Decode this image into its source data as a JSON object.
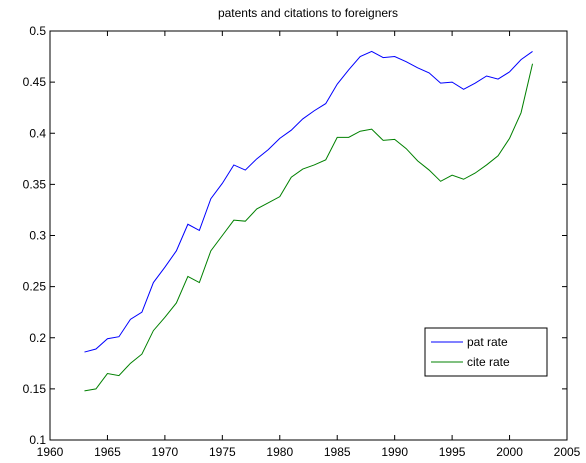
{
  "chart_data": {
    "type": "line",
    "title": "patents and citations to foreigners",
    "x": [
      1963,
      1964,
      1965,
      1966,
      1967,
      1968,
      1969,
      1970,
      1971,
      1972,
      1973,
      1974,
      1975,
      1976,
      1977,
      1978,
      1979,
      1980,
      1981,
      1982,
      1983,
      1984,
      1985,
      1986,
      1987,
      1988,
      1989,
      1990,
      1991,
      1992,
      1993,
      1994,
      1995,
      1996,
      1997,
      1998,
      1999,
      2000,
      2001,
      2002
    ],
    "series": [
      {
        "name": "pat rate",
        "color": "#0000ff",
        "values": [
          0.186,
          0.189,
          0.199,
          0.201,
          0.218,
          0.225,
          0.254,
          0.269,
          0.285,
          0.311,
          0.305,
          0.336,
          0.351,
          0.369,
          0.364,
          0.375,
          0.384,
          0.395,
          0.403,
          0.414,
          0.422,
          0.429,
          0.448,
          0.462,
          0.475,
          0.48,
          0.474,
          0.475,
          0.47,
          0.464,
          0.459,
          0.449,
          0.45,
          0.443,
          0.449,
          0.456,
          0.453,
          0.46,
          0.472,
          0.48
        ]
      },
      {
        "name": "cite rate",
        "color": "#008000",
        "values": [
          0.148,
          0.15,
          0.165,
          0.163,
          0.175,
          0.184,
          0.207,
          0.22,
          0.234,
          0.26,
          0.254,
          0.285,
          0.3,
          0.315,
          0.314,
          0.326,
          0.332,
          0.338,
          0.357,
          0.365,
          0.369,
          0.374,
          0.396,
          0.396,
          0.402,
          0.404,
          0.393,
          0.394,
          0.385,
          0.373,
          0.364,
          0.353,
          0.359,
          0.355,
          0.361,
          0.369,
          0.378,
          0.395,
          0.42,
          0.468
        ]
      }
    ],
    "xlim": [
      1960,
      2005
    ],
    "xticks": [
      1960,
      1965,
      1970,
      1975,
      1980,
      1985,
      1990,
      1995,
      2000,
      2005
    ],
    "ylim": [
      0.1,
      0.5
    ],
    "yticks": [
      0.1,
      0.15,
      0.2,
      0.25,
      0.3,
      0.35,
      0.4,
      0.45,
      0.5
    ],
    "legend": "lower right"
  }
}
